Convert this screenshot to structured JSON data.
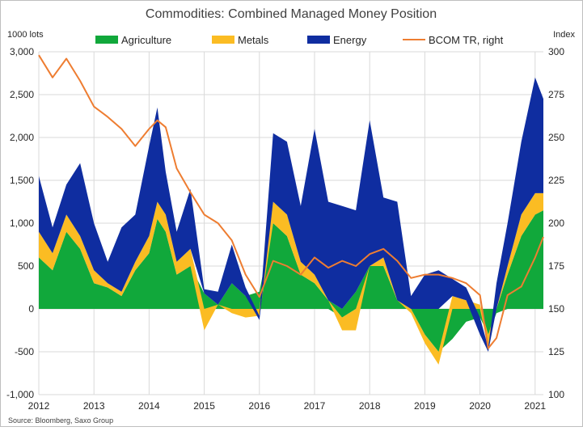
{
  "chart_data": {
    "type": "area",
    "title": "Commodities: Combined Managed Money Position",
    "y_left_unit": "1000 lots",
    "y_right_unit": "Index",
    "source": "Source: Bloomberg, Saxo Group",
    "x_ticks": [
      "2012",
      "2013",
      "2014",
      "2015",
      "2016",
      "2017",
      "2018",
      "2019",
      "2020",
      "2021"
    ],
    "x_range": [
      2012.0,
      2021.15
    ],
    "y_left_ticks": [
      "3,000",
      "2,500",
      "2,000",
      "1,500",
      "1,000",
      "500",
      "0",
      "-500",
      "-1,000"
    ],
    "y_left_range": [
      -1000,
      3000
    ],
    "y_right_ticks": [
      "300",
      "275",
      "250",
      "225",
      "200",
      "175",
      "150",
      "125",
      "100"
    ],
    "y_right_range": [
      100,
      300
    ],
    "grid": "vertical and horizontal",
    "legend_position": "top",
    "x": [
      2012.0,
      2012.25,
      2012.5,
      2012.75,
      2013.0,
      2013.25,
      2013.5,
      2013.75,
      2014.0,
      2014.15,
      2014.3,
      2014.5,
      2014.75,
      2015.0,
      2015.25,
      2015.5,
      2015.75,
      2016.0,
      2016.25,
      2016.5,
      2016.75,
      2017.0,
      2017.25,
      2017.5,
      2017.75,
      2018.0,
      2018.25,
      2018.5,
      2018.75,
      2019.0,
      2019.25,
      2019.5,
      2019.75,
      2020.0,
      2020.15,
      2020.3,
      2020.5,
      2020.75,
      2021.0,
      2021.15
    ],
    "series": [
      {
        "name": "Agriculture",
        "color": "#11a83b",
        "axis": "left",
        "stack": true,
        "values": [
          600,
          450,
          900,
          700,
          300,
          250,
          150,
          450,
          650,
          1050,
          900,
          400,
          500,
          180,
          50,
          300,
          150,
          200,
          1000,
          850,
          400,
          300,
          100,
          -100,
          200,
          500,
          500,
          100,
          0,
          -300,
          -500,
          -350,
          -150,
          -100,
          -300,
          -50,
          400,
          850,
          1100,
          1150
        ]
      },
      {
        "name": "Metals",
        "color": "#fbbc23",
        "axis": "left",
        "stack": true,
        "values": [
          300,
          200,
          200,
          150,
          150,
          50,
          50,
          100,
          200,
          200,
          200,
          150,
          200,
          -250,
          0,
          -50,
          -100,
          -80,
          250,
          250,
          150,
          100,
          0,
          -150,
          -250,
          0,
          100,
          0,
          -50,
          -100,
          -150,
          150,
          100,
          50,
          -150,
          0,
          100,
          250,
          250,
          200
        ]
      },
      {
        "name": "Energy",
        "color": "#0f2da0",
        "axis": "left",
        "stack": true,
        "values": [
          650,
          300,
          350,
          850,
          550,
          250,
          750,
          550,
          1050,
          1100,
          500,
          350,
          700,
          50,
          150,
          450,
          100,
          -50,
          800,
          850,
          650,
          1700,
          1150,
          1200,
          950,
          1700,
          700,
          1150,
          150,
          400,
          450,
          200,
          150,
          -200,
          -50,
          300,
          500,
          850,
          1350,
          1100
        ]
      },
      {
        "name": "BCOM TR, right",
        "color": "#ee7d31",
        "axis": "right",
        "stack": false,
        "values": [
          298,
          285,
          296,
          283,
          268,
          262,
          255,
          245,
          255,
          260,
          256,
          232,
          218,
          205,
          200,
          190,
          170,
          157,
          178,
          175,
          170,
          180,
          174,
          178,
          175,
          182,
          185,
          178,
          168,
          170,
          170,
          168,
          165,
          158,
          127,
          133,
          158,
          163,
          180,
          192
        ]
      }
    ]
  }
}
